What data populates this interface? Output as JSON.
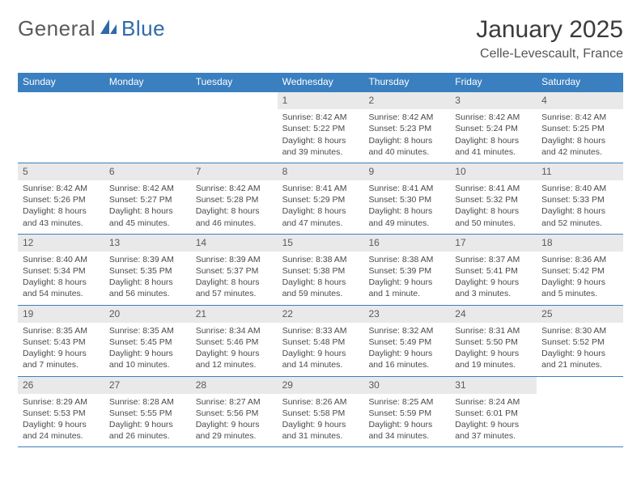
{
  "logo": {
    "text_left": "General",
    "text_right": "Blue"
  },
  "header": {
    "month_title": "January 2025",
    "location": "Celle-Levescault, France"
  },
  "colors": {
    "header_bar": "#3a7fbf",
    "daynum_bg": "#e9e9e9",
    "week_border": "#3a7fbf",
    "text": "#4a4a4a",
    "title": "#3b3b3b",
    "logo_gray": "#5a5a5a",
    "logo_blue": "#2f6aa8"
  },
  "weekdays": [
    "Sunday",
    "Monday",
    "Tuesday",
    "Wednesday",
    "Thursday",
    "Friday",
    "Saturday"
  ],
  "weeks": [
    [
      null,
      null,
      null,
      {
        "n": "1",
        "sr": "Sunrise: 8:42 AM",
        "ss": "Sunset: 5:22 PM",
        "d1": "Daylight: 8 hours",
        "d2": "and 39 minutes."
      },
      {
        "n": "2",
        "sr": "Sunrise: 8:42 AM",
        "ss": "Sunset: 5:23 PM",
        "d1": "Daylight: 8 hours",
        "d2": "and 40 minutes."
      },
      {
        "n": "3",
        "sr": "Sunrise: 8:42 AM",
        "ss": "Sunset: 5:24 PM",
        "d1": "Daylight: 8 hours",
        "d2": "and 41 minutes."
      },
      {
        "n": "4",
        "sr": "Sunrise: 8:42 AM",
        "ss": "Sunset: 5:25 PM",
        "d1": "Daylight: 8 hours",
        "d2": "and 42 minutes."
      }
    ],
    [
      {
        "n": "5",
        "sr": "Sunrise: 8:42 AM",
        "ss": "Sunset: 5:26 PM",
        "d1": "Daylight: 8 hours",
        "d2": "and 43 minutes."
      },
      {
        "n": "6",
        "sr": "Sunrise: 8:42 AM",
        "ss": "Sunset: 5:27 PM",
        "d1": "Daylight: 8 hours",
        "d2": "and 45 minutes."
      },
      {
        "n": "7",
        "sr": "Sunrise: 8:42 AM",
        "ss": "Sunset: 5:28 PM",
        "d1": "Daylight: 8 hours",
        "d2": "and 46 minutes."
      },
      {
        "n": "8",
        "sr": "Sunrise: 8:41 AM",
        "ss": "Sunset: 5:29 PM",
        "d1": "Daylight: 8 hours",
        "d2": "and 47 minutes."
      },
      {
        "n": "9",
        "sr": "Sunrise: 8:41 AM",
        "ss": "Sunset: 5:30 PM",
        "d1": "Daylight: 8 hours",
        "d2": "and 49 minutes."
      },
      {
        "n": "10",
        "sr": "Sunrise: 8:41 AM",
        "ss": "Sunset: 5:32 PM",
        "d1": "Daylight: 8 hours",
        "d2": "and 50 minutes."
      },
      {
        "n": "11",
        "sr": "Sunrise: 8:40 AM",
        "ss": "Sunset: 5:33 PM",
        "d1": "Daylight: 8 hours",
        "d2": "and 52 minutes."
      }
    ],
    [
      {
        "n": "12",
        "sr": "Sunrise: 8:40 AM",
        "ss": "Sunset: 5:34 PM",
        "d1": "Daylight: 8 hours",
        "d2": "and 54 minutes."
      },
      {
        "n": "13",
        "sr": "Sunrise: 8:39 AM",
        "ss": "Sunset: 5:35 PM",
        "d1": "Daylight: 8 hours",
        "d2": "and 56 minutes."
      },
      {
        "n": "14",
        "sr": "Sunrise: 8:39 AM",
        "ss": "Sunset: 5:37 PM",
        "d1": "Daylight: 8 hours",
        "d2": "and 57 minutes."
      },
      {
        "n": "15",
        "sr": "Sunrise: 8:38 AM",
        "ss": "Sunset: 5:38 PM",
        "d1": "Daylight: 8 hours",
        "d2": "and 59 minutes."
      },
      {
        "n": "16",
        "sr": "Sunrise: 8:38 AM",
        "ss": "Sunset: 5:39 PM",
        "d1": "Daylight: 9 hours",
        "d2": "and 1 minute."
      },
      {
        "n": "17",
        "sr": "Sunrise: 8:37 AM",
        "ss": "Sunset: 5:41 PM",
        "d1": "Daylight: 9 hours",
        "d2": "and 3 minutes."
      },
      {
        "n": "18",
        "sr": "Sunrise: 8:36 AM",
        "ss": "Sunset: 5:42 PM",
        "d1": "Daylight: 9 hours",
        "d2": "and 5 minutes."
      }
    ],
    [
      {
        "n": "19",
        "sr": "Sunrise: 8:35 AM",
        "ss": "Sunset: 5:43 PM",
        "d1": "Daylight: 9 hours",
        "d2": "and 7 minutes."
      },
      {
        "n": "20",
        "sr": "Sunrise: 8:35 AM",
        "ss": "Sunset: 5:45 PM",
        "d1": "Daylight: 9 hours",
        "d2": "and 10 minutes."
      },
      {
        "n": "21",
        "sr": "Sunrise: 8:34 AM",
        "ss": "Sunset: 5:46 PM",
        "d1": "Daylight: 9 hours",
        "d2": "and 12 minutes."
      },
      {
        "n": "22",
        "sr": "Sunrise: 8:33 AM",
        "ss": "Sunset: 5:48 PM",
        "d1": "Daylight: 9 hours",
        "d2": "and 14 minutes."
      },
      {
        "n": "23",
        "sr": "Sunrise: 8:32 AM",
        "ss": "Sunset: 5:49 PM",
        "d1": "Daylight: 9 hours",
        "d2": "and 16 minutes."
      },
      {
        "n": "24",
        "sr": "Sunrise: 8:31 AM",
        "ss": "Sunset: 5:50 PM",
        "d1": "Daylight: 9 hours",
        "d2": "and 19 minutes."
      },
      {
        "n": "25",
        "sr": "Sunrise: 8:30 AM",
        "ss": "Sunset: 5:52 PM",
        "d1": "Daylight: 9 hours",
        "d2": "and 21 minutes."
      }
    ],
    [
      {
        "n": "26",
        "sr": "Sunrise: 8:29 AM",
        "ss": "Sunset: 5:53 PM",
        "d1": "Daylight: 9 hours",
        "d2": "and 24 minutes."
      },
      {
        "n": "27",
        "sr": "Sunrise: 8:28 AM",
        "ss": "Sunset: 5:55 PM",
        "d1": "Daylight: 9 hours",
        "d2": "and 26 minutes."
      },
      {
        "n": "28",
        "sr": "Sunrise: 8:27 AM",
        "ss": "Sunset: 5:56 PM",
        "d1": "Daylight: 9 hours",
        "d2": "and 29 minutes."
      },
      {
        "n": "29",
        "sr": "Sunrise: 8:26 AM",
        "ss": "Sunset: 5:58 PM",
        "d1": "Daylight: 9 hours",
        "d2": "and 31 minutes."
      },
      {
        "n": "30",
        "sr": "Sunrise: 8:25 AM",
        "ss": "Sunset: 5:59 PM",
        "d1": "Daylight: 9 hours",
        "d2": "and 34 minutes."
      },
      {
        "n": "31",
        "sr": "Sunrise: 8:24 AM",
        "ss": "Sunset: 6:01 PM",
        "d1": "Daylight: 9 hours",
        "d2": "and 37 minutes."
      },
      null
    ]
  ]
}
